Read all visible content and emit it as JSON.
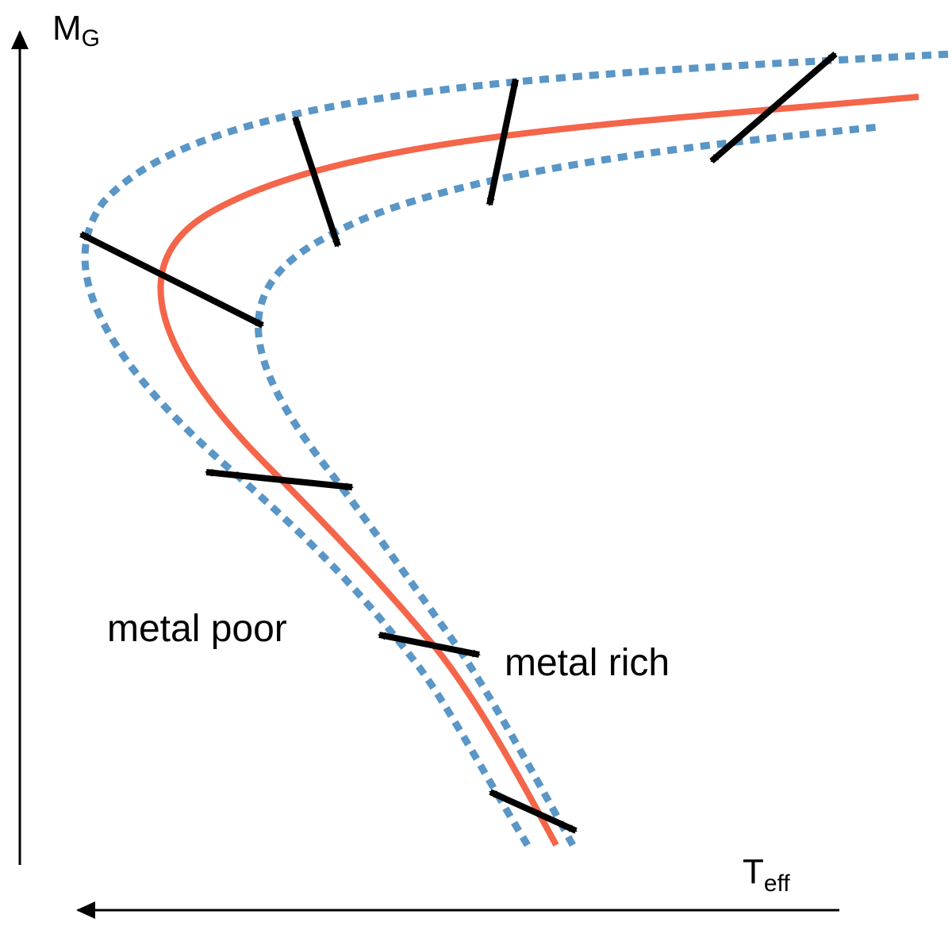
{
  "labels": {
    "y_axis_main": "M",
    "y_axis_sub": "G",
    "x_axis_main": "T",
    "x_axis_sub": "eff",
    "metal_poor": "metal poor",
    "metal_rich": "metal rich"
  },
  "colors": {
    "isochrone": "#f4654a",
    "metallicity_variant": "#5a96c6",
    "axis": "#000000",
    "arrow": "#000000"
  },
  "legend_semantics": {
    "solid_curve": "reference isochrone",
    "dotted_curves": "metallicity-shifted isochrones",
    "double_arrows": "shift direction"
  }
}
